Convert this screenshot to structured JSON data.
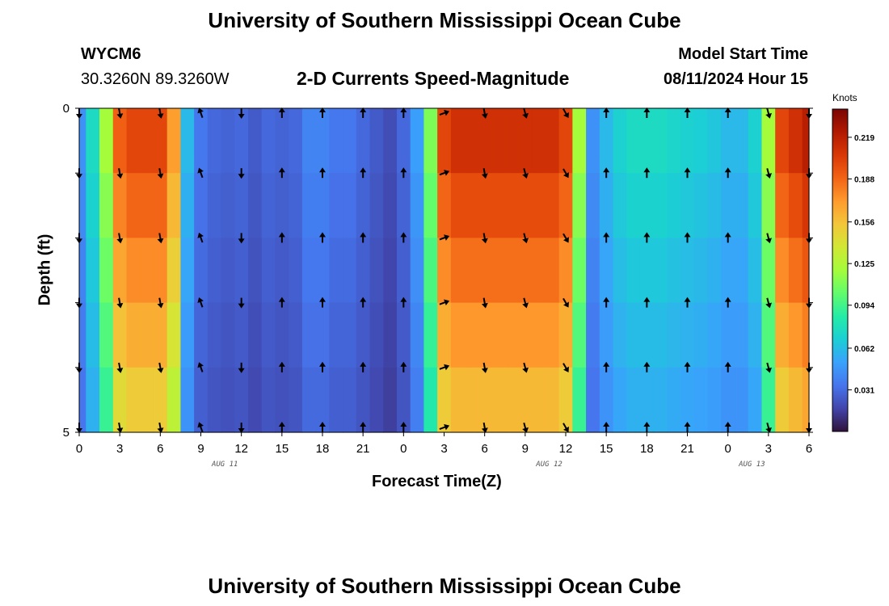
{
  "header": {
    "title": "University of Southern Mississippi Ocean Cube",
    "station_id": "WYCM6",
    "coords": "30.3260N  89.3260W",
    "subtitle": "2-D Currents Speed-Magnitude",
    "model_start_label": "Model Start Time",
    "model_start_value": "08/11/2024 Hour 15"
  },
  "footer": {
    "title": "University of Southern Mississippi Ocean Cube"
  },
  "colorbar": {
    "unit": "Knots",
    "ticks": [
      "0.031",
      "0.062",
      "0.094",
      "0.125",
      "0.156",
      "0.188",
      "0.219"
    ],
    "tick_values": [
      0.031,
      0.062,
      0.094,
      0.125,
      0.156,
      0.188,
      0.219
    ],
    "range": [
      0,
      0.24
    ],
    "colors": [
      "#30123b",
      "#4145ab",
      "#4675ed",
      "#39a2fc",
      "#1bcfd4",
      "#24eca6",
      "#61fc6c",
      "#a4fc3b",
      "#d1e834",
      "#f3c63a",
      "#fe9b2d",
      "#f36315",
      "#d93806",
      "#b11901",
      "#7a0403"
    ]
  },
  "chart_data": {
    "type": "heatmap",
    "title": "2-D Currents Speed-Magnitude",
    "xlabel": "Forecast Time(Z)",
    "ylabel": "Depth (ft)",
    "unit": "Knots",
    "x_hours": [
      0,
      1,
      2,
      3,
      4,
      5,
      6,
      7,
      8,
      9,
      10,
      11,
      12,
      13,
      14,
      15,
      16,
      17,
      18,
      19,
      20,
      21,
      22,
      23,
      24,
      25,
      26,
      27,
      28,
      29,
      30,
      31,
      32,
      33,
      34,
      35,
      36,
      37,
      38,
      39,
      40,
      41,
      42,
      43,
      44,
      45,
      46,
      47,
      48,
      49,
      50,
      51,
      52,
      53,
      54
    ],
    "x_tick_labels": [
      "0",
      "3",
      "6",
      "9",
      "12",
      "15",
      "18",
      "21",
      "0",
      "3",
      "6",
      "9",
      "12",
      "15",
      "18",
      "21",
      "0",
      "3",
      "6"
    ],
    "date_labels": [
      {
        "text": "AUG 11",
        "hour": 11
      },
      {
        "text": "AUG 12",
        "hour": 35
      },
      {
        "text": "AUG 13",
        "hour": 50
      }
    ],
    "y_ticks": [
      "0",
      "5"
    ],
    "y_range": [
      0,
      5
    ],
    "ylim_colorbar": [
      0,
      0.24
    ],
    "depth_bands": [
      "0-1 ft",
      "1-2 ft",
      "2-3 ft",
      "3-4 ft",
      "4-5 ft"
    ],
    "speed_profile_knots": [
      0.045,
      0.075,
      0.12,
      0.19,
      0.2,
      0.2,
      0.2,
      0.17,
      0.06,
      0.035,
      0.03,
      0.028,
      0.03,
      0.025,
      0.03,
      0.028,
      0.03,
      0.04,
      0.04,
      0.035,
      0.035,
      0.03,
      0.025,
      0.02,
      0.03,
      0.05,
      0.11,
      0.2,
      0.21,
      0.21,
      0.21,
      0.21,
      0.21,
      0.21,
      0.21,
      0.21,
      0.2,
      0.12,
      0.045,
      0.06,
      0.07,
      0.075,
      0.075,
      0.075,
      0.072,
      0.07,
      0.068,
      0.065,
      0.06,
      0.06,
      0.07,
      0.12,
      0.2,
      0.21,
      0.22
    ],
    "arrow_hours": [
      0,
      3,
      6,
      9,
      12,
      15,
      18,
      21,
      24,
      27,
      30,
      33,
      36,
      39,
      42,
      45,
      48,
      51,
      54
    ],
    "arrow_directions_deg": [
      180,
      170,
      170,
      340,
      180,
      0,
      0,
      0,
      0,
      70,
      170,
      165,
      150,
      0,
      0,
      0,
      0,
      165,
      180
    ],
    "arrow_depths_ft": [
      0,
      1,
      2,
      3,
      4,
      5
    ]
  }
}
